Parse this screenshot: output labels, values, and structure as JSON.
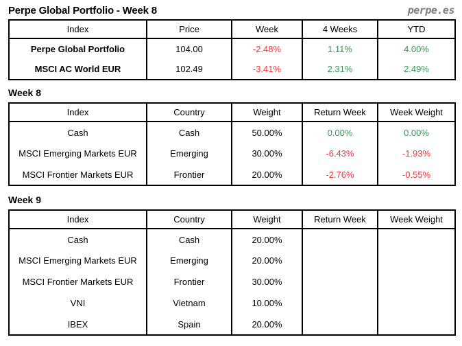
{
  "masthead": {
    "title": "Perpe Global Portfolio - Week 8",
    "logo": "perpe.es"
  },
  "colors": {
    "positive": "#339955",
    "negative": "#ff3333",
    "logo_gray": "#808080",
    "border": "#000000"
  },
  "summary": {
    "headers": [
      "Index",
      "Price",
      "Week",
      "4 Weeks",
      "YTD"
    ],
    "rows": [
      [
        "Perpe Global Portfolio",
        "104.00",
        "-2.48%",
        "1.11%",
        "4.00%"
      ],
      [
        "MSCI AC World EUR",
        "102.49",
        "-3.41%",
        "2.31%",
        "2.49%"
      ]
    ]
  },
  "week8": {
    "heading": "Week 8",
    "headers": [
      "Index",
      "Country",
      "Weight",
      "Return Week",
      "Week Weight"
    ],
    "rows": [
      [
        "Cash",
        "Cash",
        "50.00%",
        "0.00%",
        "0.00%"
      ],
      [
        "MSCI Emerging Markets EUR",
        "Emerging",
        "30.00%",
        "-6.43%",
        "-1.93%"
      ],
      [
        "MSCI Frontier Markets EUR",
        "Frontier",
        "20.00%",
        "-2.76%",
        "-0.55%"
      ]
    ]
  },
  "week9": {
    "heading": "Week 9",
    "headers": [
      "Index",
      "Country",
      "Weight",
      "Return Week",
      "Week Weight"
    ],
    "rows": [
      [
        "Cash",
        "Cash",
        "20.00%",
        "",
        ""
      ],
      [
        "MSCI Emerging Markets EUR",
        "Emerging",
        "20.00%",
        "",
        ""
      ],
      [
        "MSCI Frontier Markets EUR",
        "Frontier",
        "30.00%",
        "",
        ""
      ],
      [
        "VNI",
        "Vietnam",
        "10.00%",
        "",
        ""
      ],
      [
        "IBEX",
        "Spain",
        "20.00%",
        "",
        ""
      ]
    ]
  }
}
